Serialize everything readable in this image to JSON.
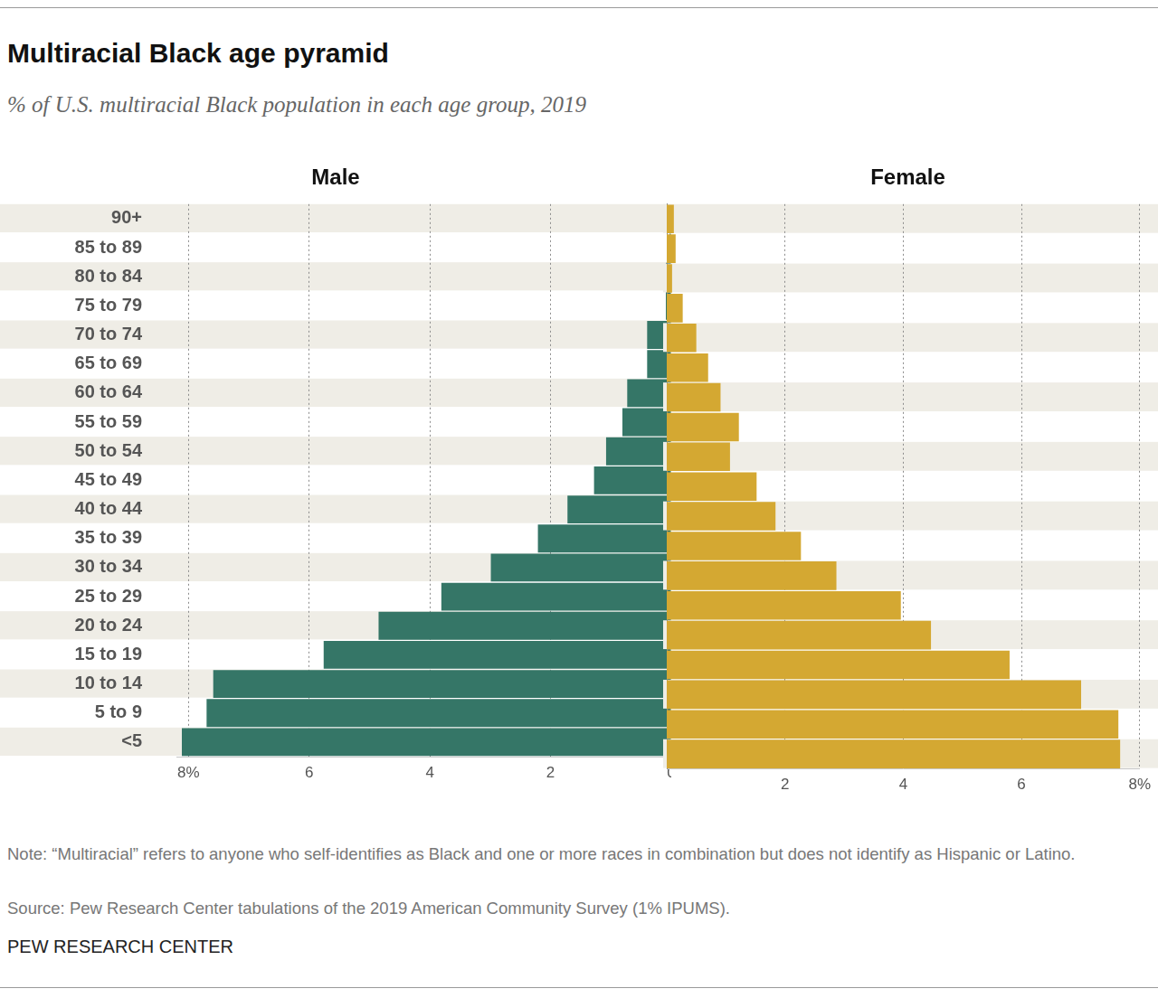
{
  "header": {
    "title": "Multiracial Black age pyramid",
    "subtitle": "% of U.S. multiracial Black population in each age group, 2019"
  },
  "chart_data": [
    {
      "type": "bar",
      "title": "Male",
      "orientation": "horizontal",
      "categories": [
        "90+",
        "85 to 89",
        "80 to 84",
        "75 to 79",
        "70 to 74",
        "65 to 69",
        "60 to 64",
        "55 to 59",
        "50 to 54",
        "45 to 49",
        "40 to 44",
        "35 to 39",
        "30 to 34",
        "25 to 29",
        "20 to 24",
        "15 to 19",
        "10 to 14",
        "5 to 9",
        "<5"
      ],
      "values": [
        0.02,
        0.03,
        0.09,
        0.09,
        0.4,
        0.4,
        0.73,
        0.81,
        1.08,
        1.28,
        1.72,
        2.21,
        2.99,
        3.81,
        4.85,
        5.76,
        7.59,
        7.7,
        8.11
      ],
      "color": "#357667",
      "xlim": [
        0,
        8.2
      ],
      "xticks": [
        0,
        2,
        4,
        6,
        {
          "value": 8,
          "label": "8%"
        }
      ],
      "grid": true
    },
    {
      "type": "bar",
      "title": "Female",
      "orientation": "horizontal",
      "categories": [
        "90+",
        "85 to 89",
        "80 to 84",
        "75 to 79",
        "70 to 74",
        "65 to 69",
        "60 to 64",
        "55 to 59",
        "50 to 54",
        "45 to 49",
        "40 to 44",
        "35 to 39",
        "30 to 34",
        "25 to 29",
        "20 to 24",
        "15 to 19",
        "10 to 14",
        "5 to 9",
        "<5"
      ],
      "values": [
        0.12,
        0.15,
        0.09,
        0.27,
        0.5,
        0.7,
        0.91,
        1.22,
        1.07,
        1.52,
        1.84,
        2.27,
        2.87,
        3.96,
        4.47,
        5.8,
        7.01,
        7.64,
        7.67
      ],
      "color": "#d4a832",
      "xlim": [
        0,
        8
      ],
      "xticks": [
        2,
        4,
        6,
        {
          "value": 8,
          "label": "8%"
        }
      ],
      "grid": true,
      "tick_labels": "x"
    }
  ],
  "footer": {
    "note": "Note: “Multiracial” refers to anyone who self-identifies as Black and one or more races in combination but does not identify as Hispanic or Latino.",
    "source": "Source: Pew Research Center tabulations of the 2019 American Community Survey (1% IPUMS).",
    "credit": "PEW RESEARCH CENTER"
  }
}
